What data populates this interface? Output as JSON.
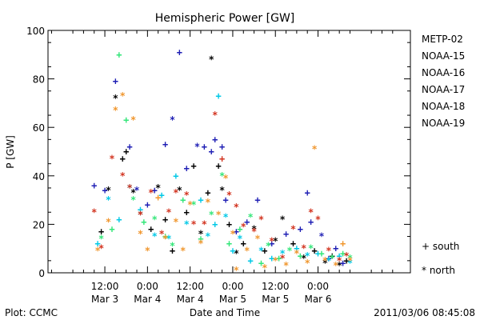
{
  "chart_data": {
    "type": "scatter",
    "title": "Hemispheric Power [GW]",
    "xlabel": "Date and Time",
    "ylabel": "P [GW]",
    "ylim": [
      0,
      100
    ],
    "y_ticks": [
      0,
      20,
      40,
      60,
      80,
      100
    ],
    "x_range_hours": [
      -16,
      86
    ],
    "x_ticks": [
      {
        "hour": 0,
        "line1": "12:00",
        "line2": "Mar 3"
      },
      {
        "hour": 12,
        "line1": "0:00",
        "line2": "Mar 4"
      },
      {
        "hour": 24,
        "line1": "12:00",
        "line2": "Mar 4"
      },
      {
        "hour": 36,
        "line1": "0:00",
        "line2": "Mar 5"
      },
      {
        "hour": 48,
        "line1": "12:00",
        "line2": "Mar 5"
      },
      {
        "hour": 60,
        "line1": "0:00",
        "line2": "Mar 6"
      }
    ],
    "grid": false,
    "legend_position": "right",
    "symbol_legend": {
      "south": "+ south",
      "north": "* north"
    },
    "series": [
      {
        "name": "METP-02",
        "color": "#000000",
        "points": [
          {
            "x": -1,
            "y": 17,
            "m": "+"
          },
          {
            "x": 1,
            "y": 34,
            "m": "*"
          },
          {
            "x": 3,
            "y": 72,
            "m": "*"
          },
          {
            "x": 5,
            "y": 47,
            "m": "+"
          },
          {
            "x": 6,
            "y": 50,
            "m": "+"
          },
          {
            "x": 8,
            "y": 33,
            "m": "*"
          },
          {
            "x": 10,
            "y": 24,
            "m": "*"
          },
          {
            "x": 13,
            "y": 18,
            "m": "+"
          },
          {
            "x": 15,
            "y": 35,
            "m": "*"
          },
          {
            "x": 17,
            "y": 22,
            "m": "+"
          },
          {
            "x": 19,
            "y": 9,
            "m": "+"
          },
          {
            "x": 21,
            "y": 34,
            "m": "*"
          },
          {
            "x": 23,
            "y": 25,
            "m": "+"
          },
          {
            "x": 25,
            "y": 44,
            "m": "+"
          },
          {
            "x": 27,
            "y": 16,
            "m": "*"
          },
          {
            "x": 29,
            "y": 33,
            "m": "+"
          },
          {
            "x": 30,
            "y": 88,
            "m": "*"
          },
          {
            "x": 32,
            "y": 44,
            "m": "+"
          },
          {
            "x": 33,
            "y": 34,
            "m": "*"
          },
          {
            "x": 35,
            "y": 20,
            "m": "+"
          },
          {
            "x": 37,
            "y": 8,
            "m": "*"
          },
          {
            "x": 39,
            "y": 12,
            "m": "+"
          },
          {
            "x": 42,
            "y": 18,
            "m": "*"
          },
          {
            "x": 45,
            "y": 9,
            "m": "+"
          },
          {
            "x": 48,
            "y": 13,
            "m": "*"
          },
          {
            "x": 50,
            "y": 22,
            "m": "*"
          },
          {
            "x": 53,
            "y": 12,
            "m": "+"
          },
          {
            "x": 56,
            "y": 6,
            "m": "*"
          },
          {
            "x": 59,
            "y": 9,
            "m": "+"
          },
          {
            "x": 62,
            "y": 4,
            "m": "*"
          },
          {
            "x": 64,
            "y": 7,
            "m": "+"
          },
          {
            "x": 66,
            "y": 3,
            "m": "*"
          },
          {
            "x": 68,
            "y": 5,
            "m": "+"
          }
        ]
      },
      {
        "name": "NOAA-15",
        "color": "#1e1eb4",
        "points": [
          {
            "x": -3,
            "y": 36,
            "m": "+"
          },
          {
            "x": 0,
            "y": 34,
            "m": "+"
          },
          {
            "x": 3,
            "y": 79,
            "m": "+"
          },
          {
            "x": 7,
            "y": 52,
            "m": "+"
          },
          {
            "x": 9,
            "y": 34,
            "m": "*"
          },
          {
            "x": 12,
            "y": 28,
            "m": "+"
          },
          {
            "x": 14,
            "y": 34,
            "m": "+"
          },
          {
            "x": 17,
            "y": 53,
            "m": "+"
          },
          {
            "x": 19,
            "y": 63,
            "m": "*"
          },
          {
            "x": 21,
            "y": 91,
            "m": "+"
          },
          {
            "x": 23,
            "y": 43,
            "m": "+"
          },
          {
            "x": 26,
            "y": 52,
            "m": "*"
          },
          {
            "x": 28,
            "y": 52,
            "m": "+"
          },
          {
            "x": 30,
            "y": 50,
            "m": "+"
          },
          {
            "x": 31,
            "y": 55,
            "m": "+"
          },
          {
            "x": 33,
            "y": 52,
            "m": "+"
          },
          {
            "x": 34,
            "y": 30,
            "m": "+"
          },
          {
            "x": 37,
            "y": 17,
            "m": "+"
          },
          {
            "x": 40,
            "y": 21,
            "m": "+"
          },
          {
            "x": 43,
            "y": 30,
            "m": "+"
          },
          {
            "x": 47,
            "y": 12,
            "m": "+"
          },
          {
            "x": 51,
            "y": 16,
            "m": "+"
          },
          {
            "x": 55,
            "y": 18,
            "m": "+"
          },
          {
            "x": 57,
            "y": 33,
            "m": "+"
          },
          {
            "x": 58,
            "y": 21,
            "m": "+"
          },
          {
            "x": 61,
            "y": 15,
            "m": "*"
          },
          {
            "x": 63,
            "y": 6,
            "m": "+"
          },
          {
            "x": 65,
            "y": 10,
            "m": "+"
          },
          {
            "x": 67,
            "y": 4,
            "m": "+"
          }
        ]
      },
      {
        "name": "NOAA-16",
        "color": "#00c8e6",
        "points": [
          {
            "x": -2,
            "y": 12,
            "m": "+"
          },
          {
            "x": 1,
            "y": 30,
            "m": "*"
          },
          {
            "x": 4,
            "y": 22,
            "m": "+"
          },
          {
            "x": 7,
            "y": 35,
            "m": "*"
          },
          {
            "x": 10,
            "y": 26,
            "m": "+"
          },
          {
            "x": 14,
            "y": 15,
            "m": "*"
          },
          {
            "x": 16,
            "y": 32,
            "m": "+"
          },
          {
            "x": 18,
            "y": 14,
            "m": "*"
          },
          {
            "x": 20,
            "y": 40,
            "m": "+"
          },
          {
            "x": 23,
            "y": 20,
            "m": "*"
          },
          {
            "x": 27,
            "y": 30,
            "m": "+"
          },
          {
            "x": 29,
            "y": 15,
            "m": "*"
          },
          {
            "x": 31,
            "y": 20,
            "m": "+"
          },
          {
            "x": 32,
            "y": 73,
            "m": "+"
          },
          {
            "x": 34,
            "y": 23,
            "m": "*"
          },
          {
            "x": 36,
            "y": 9,
            "m": "+"
          },
          {
            "x": 38,
            "y": 14,
            "m": "*"
          },
          {
            "x": 41,
            "y": 5,
            "m": "+"
          },
          {
            "x": 44,
            "y": 9,
            "m": "*"
          },
          {
            "x": 47,
            "y": 6,
            "m": "+"
          },
          {
            "x": 50,
            "y": 8,
            "m": "*"
          },
          {
            "x": 54,
            "y": 10,
            "m": "+"
          },
          {
            "x": 57,
            "y": 7,
            "m": "*"
          },
          {
            "x": 60,
            "y": 8,
            "m": "+"
          },
          {
            "x": 63,
            "y": 5,
            "m": "*"
          },
          {
            "x": 66,
            "y": 7,
            "m": "+"
          },
          {
            "x": 69,
            "y": 4,
            "m": "*"
          }
        ]
      },
      {
        "name": "NOAA-17",
        "color": "#32e678",
        "points": [
          {
            "x": -1,
            "y": 14,
            "m": "*"
          },
          {
            "x": 2,
            "y": 18,
            "m": "+"
          },
          {
            "x": 4,
            "y": 90,
            "m": "+"
          },
          {
            "x": 6,
            "y": 63,
            "m": "+"
          },
          {
            "x": 8,
            "y": 30,
            "m": "*"
          },
          {
            "x": 11,
            "y": 21,
            "m": "+"
          },
          {
            "x": 14,
            "y": 22,
            "m": "*"
          },
          {
            "x": 17,
            "y": 15,
            "m": "+"
          },
          {
            "x": 19,
            "y": 11,
            "m": "*"
          },
          {
            "x": 22,
            "y": 30,
            "m": "+"
          },
          {
            "x": 25,
            "y": 28,
            "m": "*"
          },
          {
            "x": 27,
            "y": 14,
            "m": "+"
          },
          {
            "x": 30,
            "y": 24,
            "m": "*"
          },
          {
            "x": 33,
            "y": 40,
            "m": "*"
          },
          {
            "x": 35,
            "y": 12,
            "m": "+"
          },
          {
            "x": 38,
            "y": 18,
            "m": "+"
          },
          {
            "x": 41,
            "y": 23,
            "m": "*"
          },
          {
            "x": 44,
            "y": 4,
            "m": "+"
          },
          {
            "x": 46,
            "y": 11,
            "m": "*"
          },
          {
            "x": 49,
            "y": 6,
            "m": "+"
          },
          {
            "x": 52,
            "y": 9,
            "m": "*"
          },
          {
            "x": 55,
            "y": 7,
            "m": "+"
          },
          {
            "x": 58,
            "y": 10,
            "m": "*"
          },
          {
            "x": 61,
            "y": 8,
            "m": "+"
          },
          {
            "x": 64,
            "y": 6,
            "m": "*"
          },
          {
            "x": 67,
            "y": 8,
            "m": "+"
          },
          {
            "x": 69,
            "y": 6,
            "m": "*"
          }
        ]
      },
      {
        "name": "NOAA-18",
        "color": "#f0962d",
        "points": [
          {
            "x": -2,
            "y": 9,
            "m": "*"
          },
          {
            "x": 1,
            "y": 21,
            "m": "*"
          },
          {
            "x": 3,
            "y": 67,
            "m": "*"
          },
          {
            "x": 5,
            "y": 73,
            "m": "*"
          },
          {
            "x": 8,
            "y": 63,
            "m": "*"
          },
          {
            "x": 10,
            "y": 16,
            "m": "*"
          },
          {
            "x": 12,
            "y": 9,
            "m": "*"
          },
          {
            "x": 15,
            "y": 31,
            "m": "+"
          },
          {
            "x": 17,
            "y": 14,
            "m": "*"
          },
          {
            "x": 20,
            "y": 21,
            "m": "*"
          },
          {
            "x": 22,
            "y": 9,
            "m": "*"
          },
          {
            "x": 24,
            "y": 28,
            "m": "*"
          },
          {
            "x": 27,
            "y": 12,
            "m": "*"
          },
          {
            "x": 29,
            "y": 29,
            "m": "*"
          },
          {
            "x": 32,
            "y": 24,
            "m": "*"
          },
          {
            "x": 34,
            "y": 39,
            "m": "*"
          },
          {
            "x": 36,
            "y": 16,
            "m": "*"
          },
          {
            "x": 37,
            "y": 1,
            "m": "*"
          },
          {
            "x": 40,
            "y": 9,
            "m": "*"
          },
          {
            "x": 43,
            "y": 14,
            "m": "*"
          },
          {
            "x": 45,
            "y": 2,
            "m": "*"
          },
          {
            "x": 48,
            "y": 5,
            "m": "*"
          },
          {
            "x": 51,
            "y": 3,
            "m": "*"
          },
          {
            "x": 54,
            "y": 8,
            "m": "*"
          },
          {
            "x": 57,
            "y": 4,
            "m": "*"
          },
          {
            "x": 59,
            "y": 51,
            "m": "*"
          },
          {
            "x": 62,
            "y": 5,
            "m": "*"
          },
          {
            "x": 65,
            "y": 3,
            "m": "*"
          },
          {
            "x": 67,
            "y": 12,
            "m": "+"
          },
          {
            "x": 69,
            "y": 5,
            "m": "*"
          }
        ]
      },
      {
        "name": "NOAA-19",
        "color": "#d2321e",
        "points": [
          {
            "x": -3,
            "y": 25,
            "m": "*"
          },
          {
            "x": -1,
            "y": 10,
            "m": "*"
          },
          {
            "x": 2,
            "y": 47,
            "m": "*"
          },
          {
            "x": 5,
            "y": 40,
            "m": "*"
          },
          {
            "x": 7,
            "y": 35,
            "m": "*"
          },
          {
            "x": 10,
            "y": 24,
            "m": "*"
          },
          {
            "x": 13,
            "y": 33,
            "m": "*"
          },
          {
            "x": 16,
            "y": 16,
            "m": "*"
          },
          {
            "x": 18,
            "y": 25,
            "m": "*"
          },
          {
            "x": 20,
            "y": 33,
            "m": "*"
          },
          {
            "x": 23,
            "y": 32,
            "m": "*"
          },
          {
            "x": 25,
            "y": 20,
            "m": "*"
          },
          {
            "x": 28,
            "y": 20,
            "m": "*"
          },
          {
            "x": 31,
            "y": 65,
            "m": "*"
          },
          {
            "x": 33,
            "y": 47,
            "m": "+"
          },
          {
            "x": 35,
            "y": 32,
            "m": "*"
          },
          {
            "x": 37,
            "y": 27,
            "m": "*"
          },
          {
            "x": 39,
            "y": 19,
            "m": "*"
          },
          {
            "x": 42,
            "y": 17,
            "m": "*"
          },
          {
            "x": 44,
            "y": 22,
            "m": "*"
          },
          {
            "x": 47,
            "y": 13,
            "m": "*"
          },
          {
            "x": 50,
            "y": 6,
            "m": "*"
          },
          {
            "x": 53,
            "y": 18,
            "m": "*"
          },
          {
            "x": 56,
            "y": 10,
            "m": "*"
          },
          {
            "x": 58,
            "y": 25,
            "m": "*"
          },
          {
            "x": 60,
            "y": 22,
            "m": "*"
          },
          {
            "x": 63,
            "y": 9,
            "m": "*"
          },
          {
            "x": 66,
            "y": 5,
            "m": "*"
          },
          {
            "x": 68,
            "y": 7,
            "m": "*"
          }
        ]
      }
    ]
  },
  "footer": {
    "left": "Plot: CCMC",
    "right": "2011/03/06 08:45:08"
  }
}
